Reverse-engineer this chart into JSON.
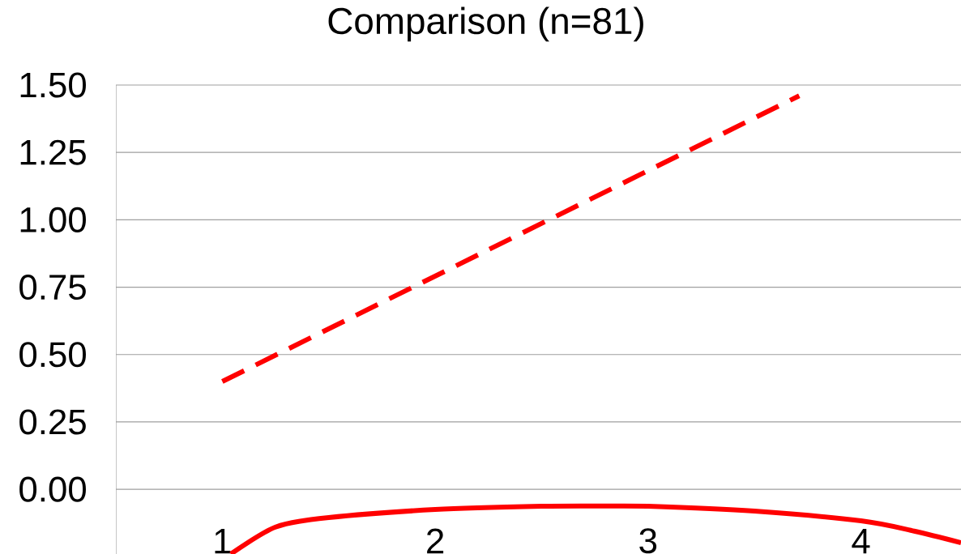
{
  "chart_data": {
    "type": "line",
    "title": "Comparison (n=81)",
    "xlim": [
      0.5,
      4.47
    ],
    "ylim": [
      -0.24,
      1.5
    ],
    "xticks": [
      1,
      2,
      3,
      4
    ],
    "yticks": [
      {
        "value": 0,
        "label": "0.00"
      },
      {
        "value": 0.25,
        "label": "0.25"
      },
      {
        "value": 0.5,
        "label": "0.50"
      },
      {
        "value": 0.75,
        "label": "0.75"
      },
      {
        "value": 1,
        "label": "1.00"
      },
      {
        "value": 1.25,
        "label": "1.25"
      },
      {
        "value": 1.5,
        "label": "1.50"
      }
    ],
    "grid": "y",
    "marker": "none",
    "series": [
      {
        "color": "#ff0000",
        "line_style": "dashed",
        "x": [
          1,
          3.71
        ],
        "values": [
          0.4,
          1.46
        ]
      },
      {
        "color": "#ff0000",
        "line_style": "solid",
        "x": [
          1.04,
          1.25,
          1.5,
          2,
          2.5,
          2.79,
          3,
          3.5,
          4,
          4.25,
          4.47
        ],
        "values": [
          -0.24,
          -0.14,
          -0.105,
          -0.075,
          -0.063,
          -0.062,
          -0.063,
          -0.081,
          -0.117,
          -0.155,
          -0.198
        ]
      }
    ]
  }
}
